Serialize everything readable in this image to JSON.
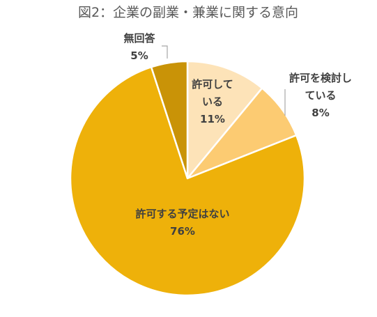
{
  "chart_data": {
    "type": "pie",
    "title": "図2：企業の副業・兼業に関する意向",
    "slices": [
      {
        "label_lines": [
          "許可して",
          "いる"
        ],
        "value": 11,
        "value_label": "11%",
        "color": "#FDE3B8"
      },
      {
        "label_lines": [
          "許可を検討し",
          "ている"
        ],
        "value": 8,
        "value_label": "8%",
        "color": "#FCCB72"
      },
      {
        "label_lines": [
          "許可する予定はない"
        ],
        "value": 76,
        "value_label": "76%",
        "color": "#EEB10A"
      },
      {
        "label_lines": [
          "無回答"
        ],
        "value": 5,
        "value_label": "5%",
        "color": "#C99307"
      }
    ],
    "legend": "none",
    "start": "12 o'clock",
    "direction": "clockwise"
  }
}
